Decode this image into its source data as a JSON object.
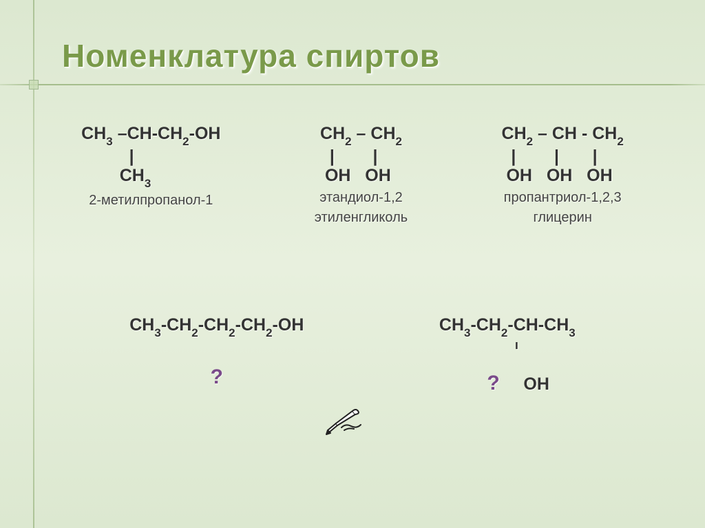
{
  "slide": {
    "title": "Номенклатура спиртов",
    "background_gradient": [
      "#dce8d0",
      "#e8f0de",
      "#dce8d0"
    ],
    "title_color": "#7a9a4a",
    "title_fontsize": 46,
    "crosshair_line_color": "#8caa6e"
  },
  "molecules_row1": [
    {
      "line1_html": "CH<sub>3</sub> –CH-CH<sub>2</sub>-OH",
      "line2_html": "          |",
      "line3_html": "        CH<sub>3</sub>",
      "name1": "2-метилпропанол-1",
      "name2": ""
    },
    {
      "line1_html": "CH<sub>2</sub> – CH<sub>2</sub>",
      "line2_html": "  |        |",
      "line3_html": " OH   OH",
      "name1": "этандиол-1,2",
      "name2": "этиленгликоль"
    },
    {
      "line1_html": "CH<sub>2</sub> – CH - CH<sub>2</sub>",
      "line2_html": "  |        |       |",
      "line3_html": " OH   OH   OH",
      "name1": "пропантриол-1,2,3",
      "name2": "глицерин"
    }
  ],
  "molecules_row2": [
    {
      "formula_html": "CH<sub>3</sub>-CH<sub>2</sub>-CH<sub>2</sub>-CH<sub>2</sub>-OH",
      "line2_html": "",
      "line3_html": "",
      "question": "?"
    },
    {
      "formula_html": "CH<sub>3</sub>-CH<sub>2</sub>-CH-CH<sub>3</sub>",
      "line2_html": "                      ı",
      "line3_html": "?     OH",
      "question": ""
    }
  ],
  "icons": {
    "hand_pointer": "hand-writing-icon"
  },
  "text_styling": {
    "formula_fontsize": 25,
    "formula_color": "#333333",
    "name_fontsize": 20,
    "name_color": "#444444",
    "question_color": "#7a4a8a",
    "question_fontsize": 30
  }
}
